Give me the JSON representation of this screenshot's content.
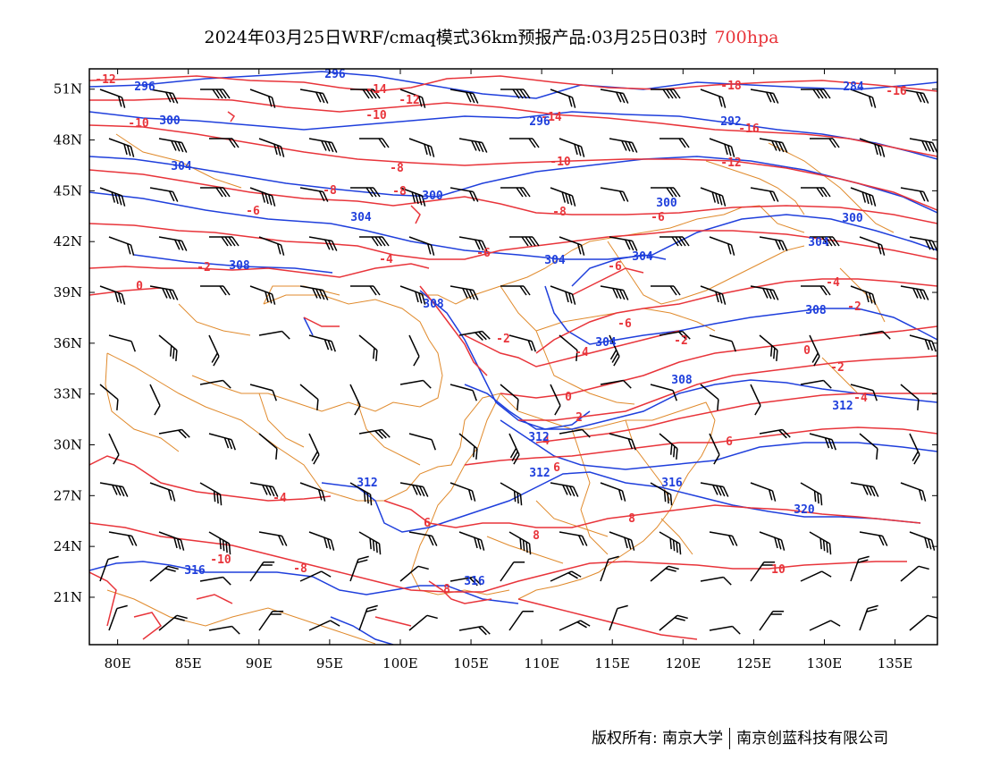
{
  "title": {
    "text": "2024年03月25日WRF/cmaq模式36km预报产品:03月25日03时",
    "level": "700hpa",
    "level_color": "#e8343a"
  },
  "map": {
    "lon_range": [
      78,
      138
    ],
    "lat_range": [
      18.2,
      52.2
    ],
    "lon_ticks": [
      80,
      85,
      90,
      95,
      100,
      105,
      110,
      115,
      120,
      125,
      130,
      135
    ],
    "lon_labels": [
      "80E",
      "85E",
      "90E",
      "95E",
      "100E",
      "105E",
      "110E",
      "115E",
      "120E",
      "125E",
      "130E",
      "135E"
    ],
    "lat_ticks": [
      21,
      24,
      27,
      30,
      33,
      36,
      39,
      42,
      45,
      48,
      51
    ],
    "lat_labels": [
      "21N",
      "24N",
      "27N",
      "30N",
      "33N",
      "36N",
      "39N",
      "42N",
      "45N",
      "48N",
      "51N"
    ],
    "colors": {
      "temperature": "#e8343a",
      "height": "#1f3fdc",
      "boundary": "#e08a2c",
      "wind": "#000000"
    }
  },
  "temperature_labels": [
    "-12",
    "-14",
    "-12",
    "-16",
    "-18",
    "-10",
    "-14",
    "-10",
    "-16",
    "-12",
    "-8",
    "-8",
    "-8",
    "-10",
    "-6",
    "-6",
    "-6",
    "-8",
    "-4",
    "-6",
    "-2",
    "0",
    "-2",
    "-4",
    "-4",
    "-6",
    "-2",
    "0",
    "-2",
    "-2",
    "-4",
    "0",
    "2",
    "4",
    "6",
    "6",
    "6",
    "8",
    "8",
    "8",
    "10",
    "-4",
    "-8",
    "-10"
  ],
  "height_labels": [
    "296",
    "296",
    "284",
    "300",
    "296",
    "292",
    "304",
    "300",
    "300",
    "300",
    "304",
    "304",
    "308",
    "304",
    "304",
    "308",
    "304",
    "308",
    "312",
    "312",
    "316",
    "312",
    "316",
    "320",
    "316",
    "308",
    "312"
  ],
  "footer": {
    "copyright": "版权所有: 南京大学",
    "company": "南京创蓝科技有限公司"
  }
}
